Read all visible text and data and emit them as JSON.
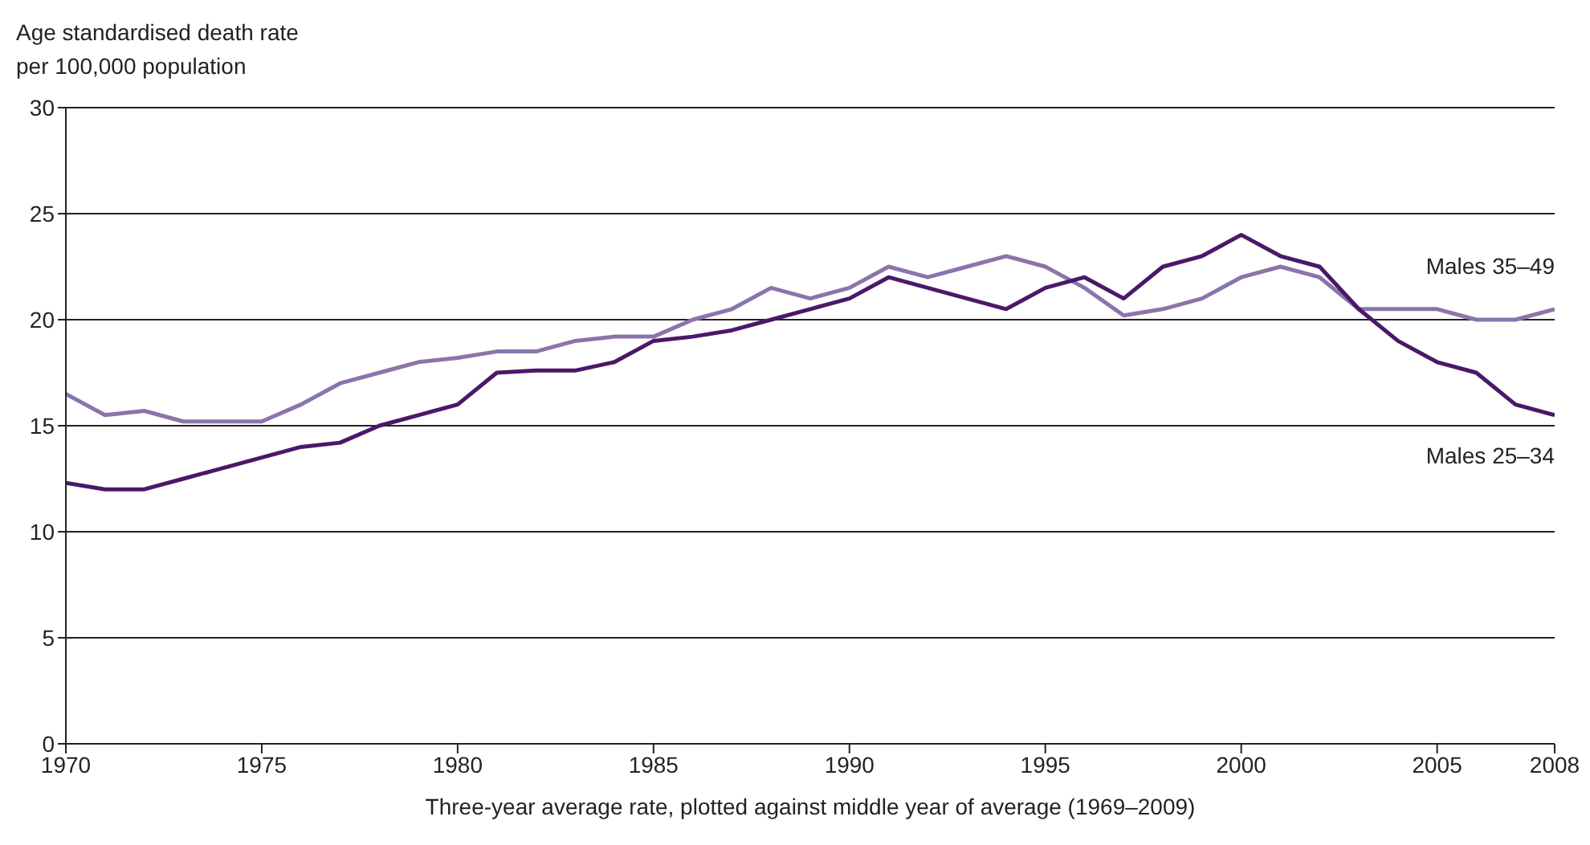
{
  "chart_data": {
    "type": "line",
    "ylabel": "Age standardised death rate\nper 100,000 population",
    "xlabel": "Three-year average rate, plotted against middle year of average (1969–2009)",
    "x": [
      1970,
      1971,
      1972,
      1973,
      1974,
      1975,
      1976,
      1977,
      1978,
      1979,
      1980,
      1981,
      1982,
      1983,
      1984,
      1985,
      1986,
      1987,
      1988,
      1989,
      1990,
      1991,
      1992,
      1993,
      1994,
      1995,
      1996,
      1997,
      1998,
      1999,
      2000,
      2001,
      2002,
      2003,
      2004,
      2005,
      2006,
      2007,
      2008
    ],
    "series": [
      {
        "name": "Males 35–49",
        "color": "#8b74ac",
        "values": [
          16.5,
          15.5,
          15.7,
          15.2,
          15.2,
          15.2,
          16,
          17,
          17.5,
          18,
          18.2,
          18.5,
          18.5,
          19,
          19.2,
          19.2,
          20,
          20.5,
          21.5,
          21,
          21.5,
          22.5,
          22,
          22.5,
          23,
          22.5,
          21.5,
          20.2,
          20.5,
          21,
          22,
          22.5,
          22,
          20.5,
          20.5,
          20.5,
          20,
          20,
          20.5
        ]
      },
      {
        "name": "Males 25–34",
        "color": "#4b1869",
        "values": [
          12.3,
          12,
          12,
          12.5,
          13,
          13.5,
          14,
          14.2,
          15,
          15.5,
          16,
          17.5,
          17.6,
          17.6,
          18,
          19,
          19.2,
          19.5,
          20,
          20.5,
          21,
          22,
          21.5,
          21,
          20.5,
          21.5,
          22,
          21,
          22.5,
          23,
          24,
          23,
          22.5,
          20.5,
          19,
          18,
          17.5,
          16,
          15.5
        ]
      }
    ],
    "xlim": [
      1970,
      2008
    ],
    "xticks": [
      1970,
      1975,
      1980,
      1985,
      1990,
      1995,
      2000,
      2005,
      2008
    ],
    "ylim": [
      0,
      30
    ],
    "yticks": [
      0,
      5,
      10,
      15,
      20,
      25,
      30
    ],
    "grid": "y",
    "marker": "none",
    "line_style": "solid"
  }
}
